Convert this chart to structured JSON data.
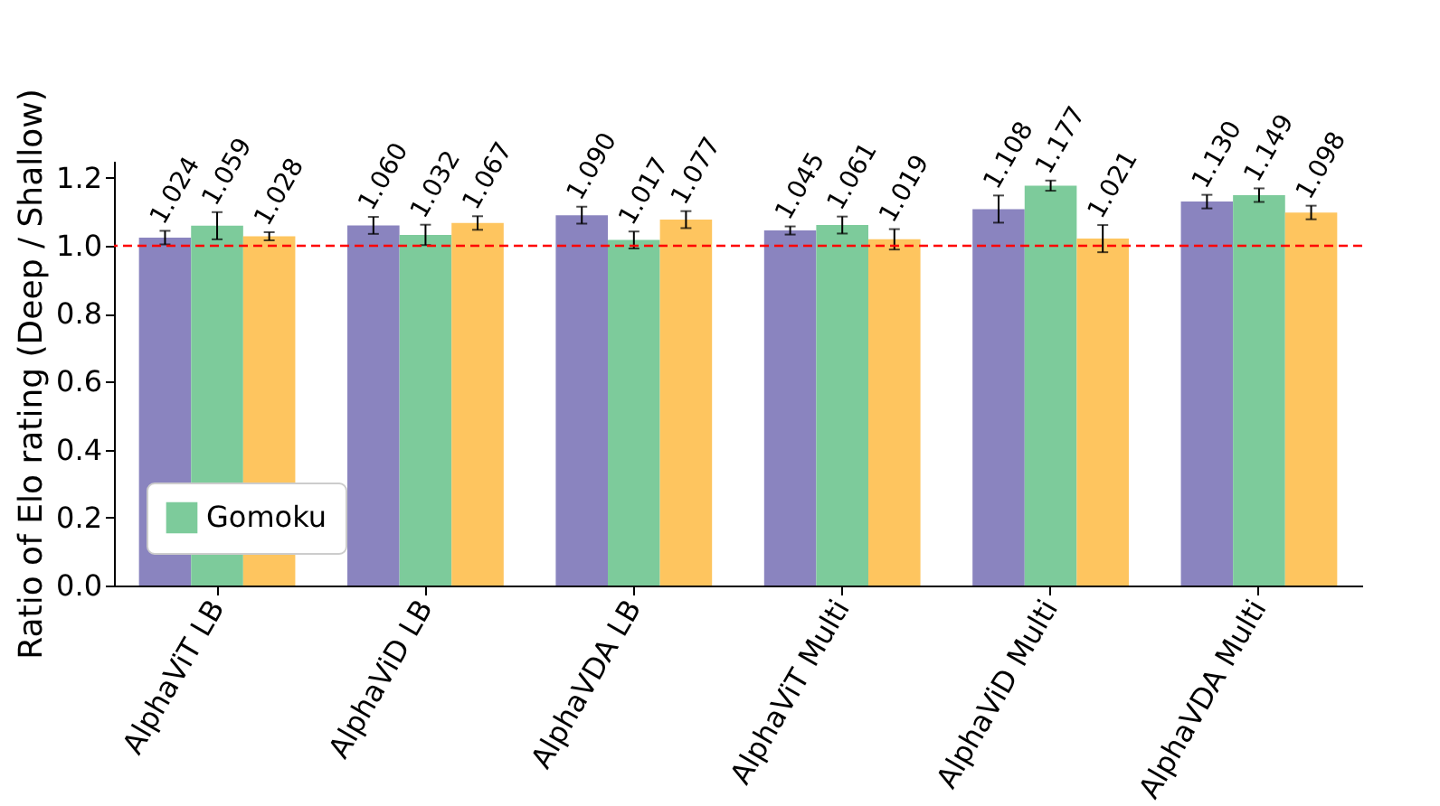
{
  "chart_data": {
    "type": "bar",
    "ylabel": "Ratio of Elo rating (Deep / Shallow)",
    "categories": [
      "AlphaViT LB",
      "AlphaViD LB",
      "AlphaVDA LB",
      "AlphaViT Multi",
      "AlphaViD Multi",
      "AlphaVDA Multi"
    ],
    "series": [
      {
        "color": "#8a84bf",
        "values": [
          1.024,
          1.06,
          1.09,
          1.045,
          1.108,
          1.13
        ],
        "value_labels": [
          "1.024",
          "1.060",
          "1.090",
          "1.045",
          "1.108",
          "1.130"
        ],
        "errors": [
          0.02,
          0.025,
          0.025,
          0.012,
          0.04,
          0.02
        ]
      },
      {
        "name": "Gomoku",
        "color": "#7dcb9b",
        "values": [
          1.059,
          1.032,
          1.017,
          1.061,
          1.177,
          1.149
        ],
        "value_labels": [
          "1.059",
          "1.032",
          "1.017",
          "1.061",
          "1.177",
          "1.149"
        ],
        "errors": [
          0.04,
          0.03,
          0.025,
          0.025,
          0.015,
          0.02
        ]
      },
      {
        "color": "#fec55f",
        "values": [
          1.028,
          1.067,
          1.077,
          1.019,
          1.021,
          1.098
        ],
        "value_labels": [
          "1.028",
          "1.067",
          "1.077",
          "1.019",
          "1.021",
          "1.098"
        ],
        "errors": [
          0.012,
          0.02,
          0.025,
          0.03,
          0.04,
          0.02
        ]
      }
    ],
    "ylim": [
      0,
      1.25
    ],
    "yticks": [
      {
        "value": 0,
        "label": "0.0"
      },
      0.2,
      0.4,
      0.6,
      0.8,
      {
        "value": 1,
        "label": "1.0"
      },
      1.2
    ],
    "ref_lines": [
      {
        "axis": "y",
        "value": 1.0,
        "color": "#ff0000",
        "line_style": "dashed"
      }
    ],
    "legend": "bottom left",
    "grid": false
  }
}
